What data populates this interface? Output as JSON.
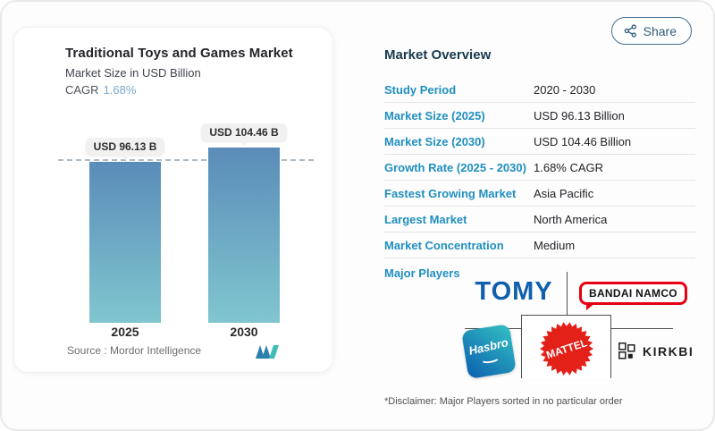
{
  "chart_card": {
    "title": "Traditional Toys and Games Market",
    "subtitle": "Market Size in USD Billion",
    "cagr_label": "CAGR",
    "cagr_value": "1.68%",
    "source_label": "Source :  Mordor Intelligence"
  },
  "chart_data": {
    "type": "bar",
    "categories": [
      "2025",
      "2030"
    ],
    "values": [
      96.13,
      104.46
    ],
    "bar_labels": [
      "USD 96.13 B",
      "USD 104.46 B"
    ],
    "title": "Traditional Toys and Games Market",
    "ylabel": "Market Size in USD Billion",
    "ylim": [
      0,
      122
    ],
    "reference_line": 96.13,
    "grid": false,
    "bar_color_top": "#5a8cb9",
    "bar_color_bottom": "#80c6cf"
  },
  "header": {
    "share_label": "Share"
  },
  "overview": {
    "heading": "Market Overview",
    "rows": [
      {
        "label": "Study Period",
        "value": "2020 - 2030"
      },
      {
        "label": "Market Size (2025)",
        "value": "USD 96.13 Billion"
      },
      {
        "label": "Market Size (2030)",
        "value": "USD 104.46 Billion"
      },
      {
        "label": "Growth Rate (2025 - 2030)",
        "value": "1.68% CAGR"
      },
      {
        "label": "Fastest Growing Market",
        "value": "Asia Pacific"
      },
      {
        "label": "Largest Market",
        "value": "North America"
      },
      {
        "label": "Market Concentration",
        "value": "Medium"
      }
    ],
    "major_players_label": "Major Players",
    "players": [
      {
        "name": "TOMY"
      },
      {
        "name": "BANDAI NAMCO"
      },
      {
        "name": "Hasbro"
      },
      {
        "name": "MATTEL"
      },
      {
        "name": "KIRKBI"
      }
    ],
    "disclaimer": "*Disclaimer: Major Players sorted in no particular order"
  },
  "colors": {
    "accent_blue": "#1f8fbf",
    "heading_navy": "#16384f",
    "cagr_blue": "#7ba7cf",
    "tomy_blue": "#0f5fad",
    "bandai_red": "#e60012",
    "mattel_red": "#e32119",
    "share_border": "#3f6e8f"
  }
}
